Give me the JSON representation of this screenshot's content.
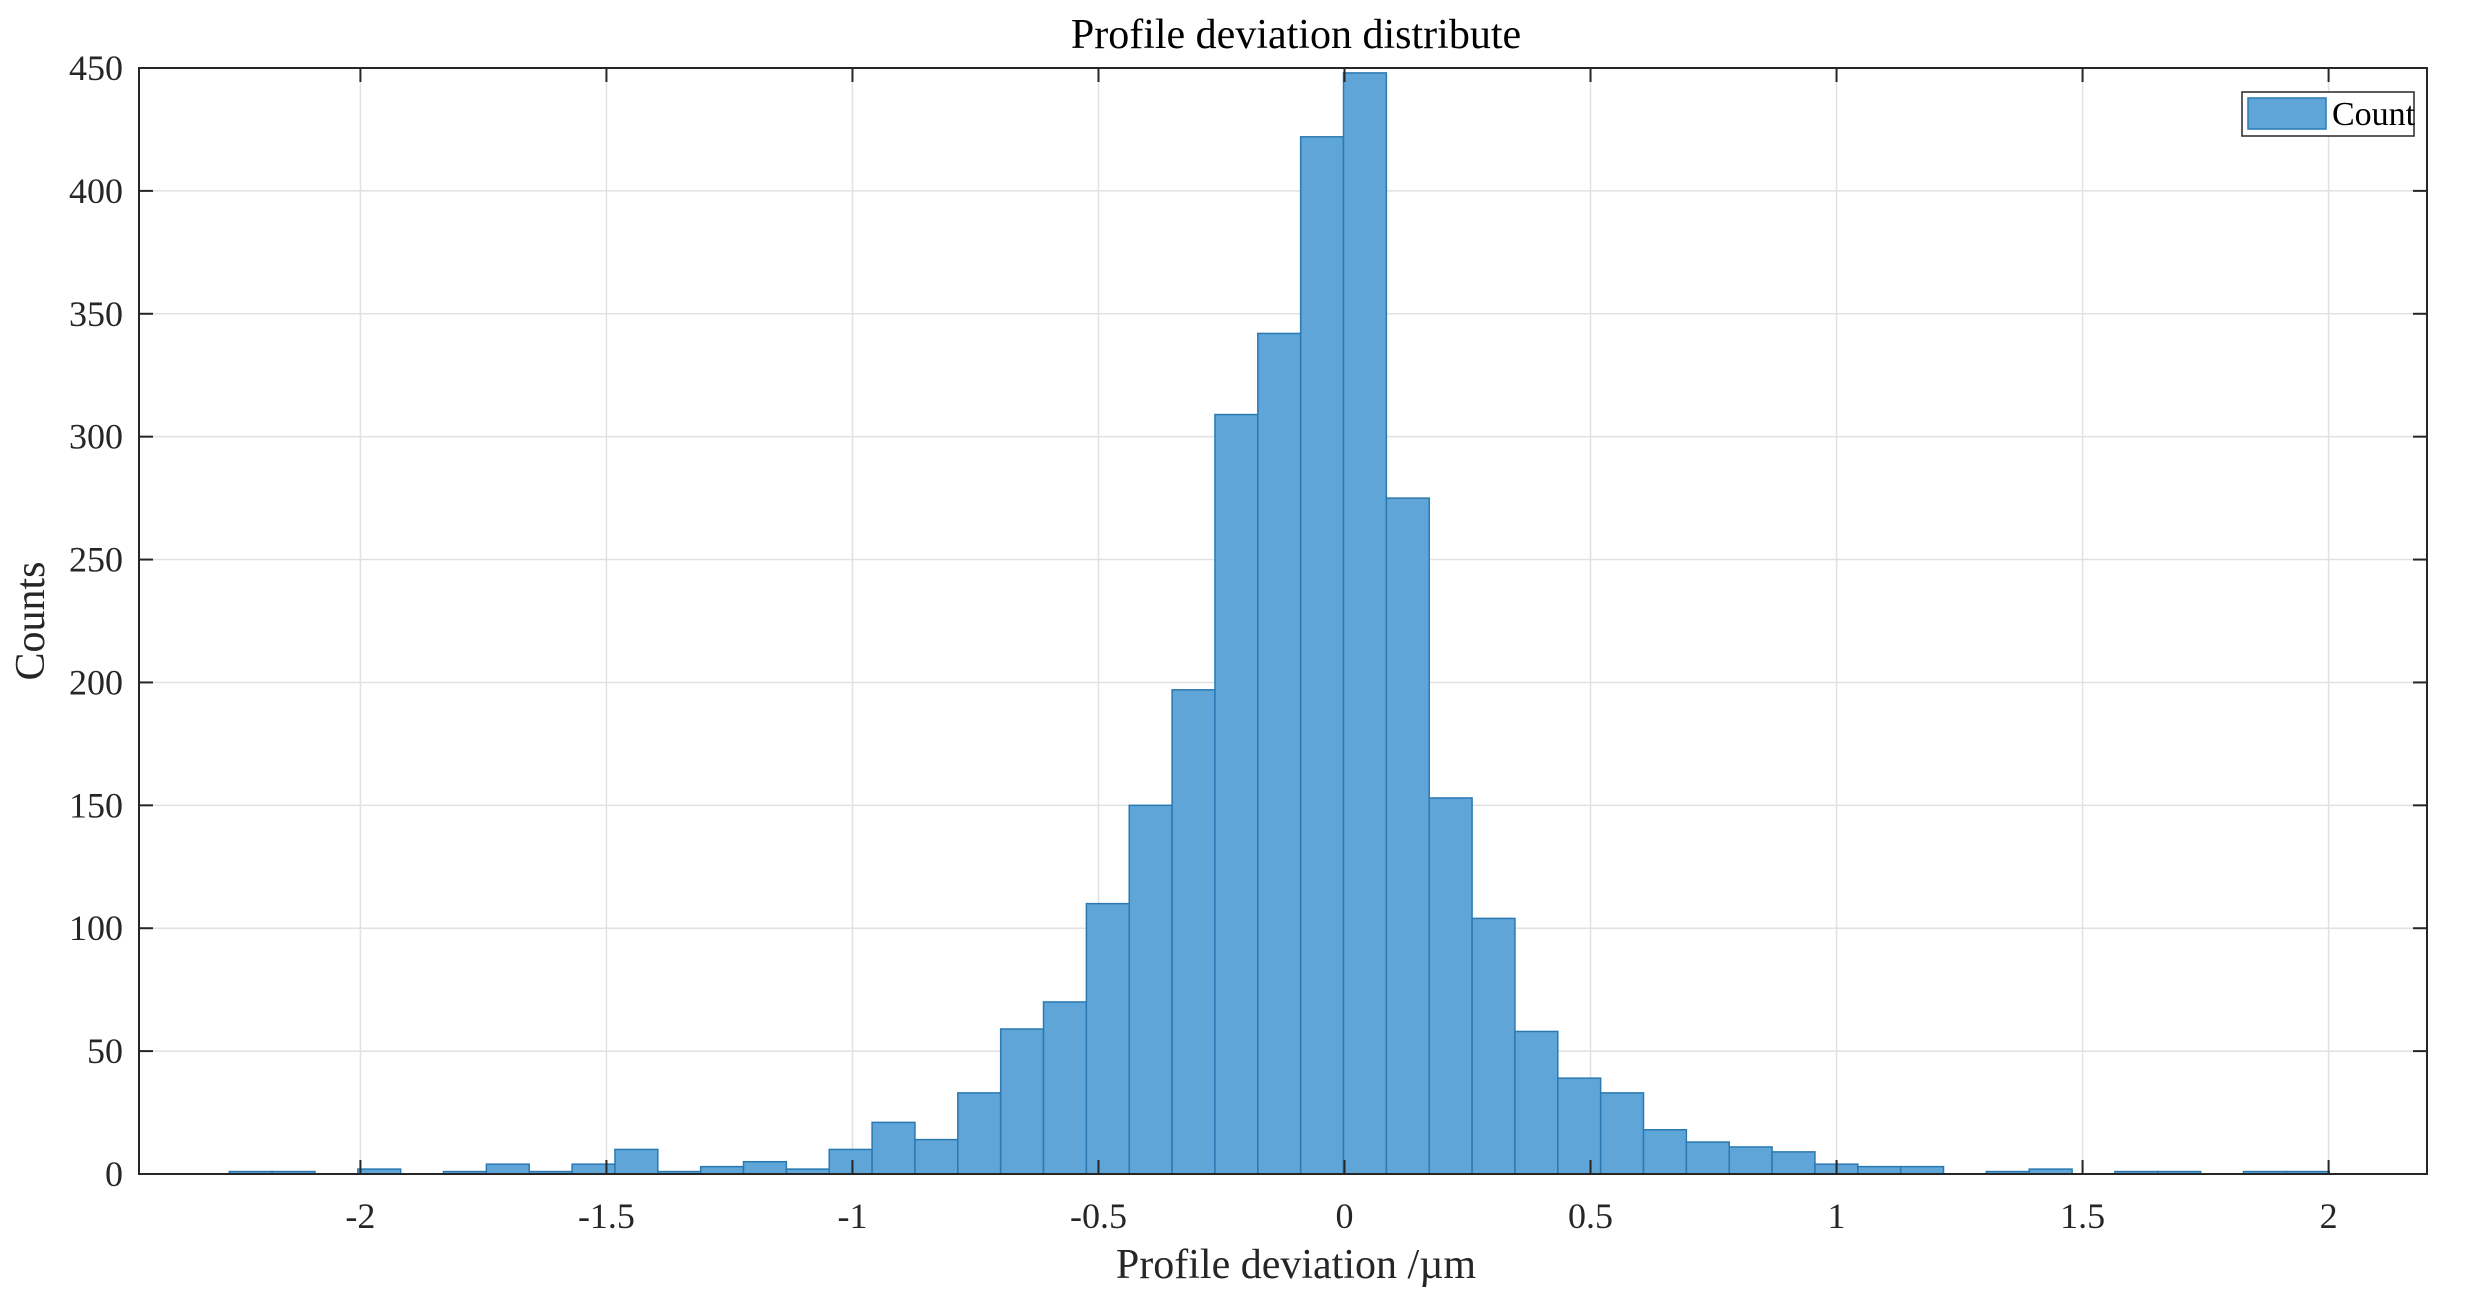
{
  "chart_data": {
    "type": "bar",
    "title": "Profile deviation distribute",
    "xlabel": "Profile deviation /µm",
    "ylabel": "Counts",
    "xlim": [
      -2.45,
      2.2
    ],
    "ylim": [
      0,
      450
    ],
    "xticks": [
      -2,
      -1.5,
      -1,
      -0.5,
      0,
      0.5,
      1,
      1.5,
      2
    ],
    "xtick_labels": [
      "-2",
      "-1.5",
      "-1",
      "-0.5",
      "0",
      "0.5",
      "1",
      "1.5",
      "2"
    ],
    "yticks": [
      0,
      50,
      100,
      150,
      200,
      250,
      300,
      350,
      400,
      450
    ],
    "ytick_labels": [
      "0",
      "50",
      "100",
      "150",
      "200",
      "250",
      "300",
      "350",
      "400",
      "450"
    ],
    "grid": true,
    "legend": {
      "position": "top-right",
      "entries": [
        "Count"
      ]
    },
    "bin_width": 0.0871,
    "series": [
      {
        "name": "Count",
        "color": "#5fa5d7",
        "edge_color": "#2b79b3",
        "bins": [
          {
            "x0": -2.2666,
            "value": 1
          },
          {
            "x0": -2.1795,
            "value": 1
          },
          {
            "x0": -2.0053,
            "value": 2
          },
          {
            "x0": -1.8311,
            "value": 1
          },
          {
            "x0": -1.744,
            "value": 4
          },
          {
            "x0": -1.6569,
            "value": 1
          },
          {
            "x0": -1.5698,
            "value": 4
          },
          {
            "x0": -1.4827,
            "value": 10
          },
          {
            "x0": -1.3956,
            "value": 1
          },
          {
            "x0": -1.3085,
            "value": 3
          },
          {
            "x0": -1.2214,
            "value": 5
          },
          {
            "x0": -1.1343,
            "value": 2
          },
          {
            "x0": -1.0472,
            "value": 10
          },
          {
            "x0": -0.9601,
            "value": 21
          },
          {
            "x0": -0.873,
            "value": 14
          },
          {
            "x0": -0.7859,
            "value": 33
          },
          {
            "x0": -0.6988,
            "value": 59
          },
          {
            "x0": -0.6117,
            "value": 70
          },
          {
            "x0": -0.5246,
            "value": 110
          },
          {
            "x0": -0.4375,
            "value": 150
          },
          {
            "x0": -0.3504,
            "value": 197
          },
          {
            "x0": -0.2633,
            "value": 309
          },
          {
            "x0": -0.1762,
            "value": 342
          },
          {
            "x0": -0.0891,
            "value": 422
          },
          {
            "x0": -0.002,
            "value": 448
          },
          {
            "x0": 0.0851,
            "value": 275
          },
          {
            "x0": 0.1722,
            "value": 153
          },
          {
            "x0": 0.2593,
            "value": 104
          },
          {
            "x0": 0.3464,
            "value": 58
          },
          {
            "x0": 0.4335,
            "value": 39
          },
          {
            "x0": 0.5206,
            "value": 33
          },
          {
            "x0": 0.6077,
            "value": 18
          },
          {
            "x0": 0.6948,
            "value": 13
          },
          {
            "x0": 0.7819,
            "value": 11
          },
          {
            "x0": 0.869,
            "value": 9
          },
          {
            "x0": 0.9561,
            "value": 4
          },
          {
            "x0": 1.0432,
            "value": 3
          },
          {
            "x0": 1.1303,
            "value": 3
          },
          {
            "x0": 1.3045,
            "value": 1
          },
          {
            "x0": 1.3916,
            "value": 2
          },
          {
            "x0": 1.5658,
            "value": 1
          },
          {
            "x0": 1.6529,
            "value": 1
          },
          {
            "x0": 1.8271,
            "value": 1
          },
          {
            "x0": 1.9142,
            "value": 1
          }
        ]
      }
    ]
  }
}
